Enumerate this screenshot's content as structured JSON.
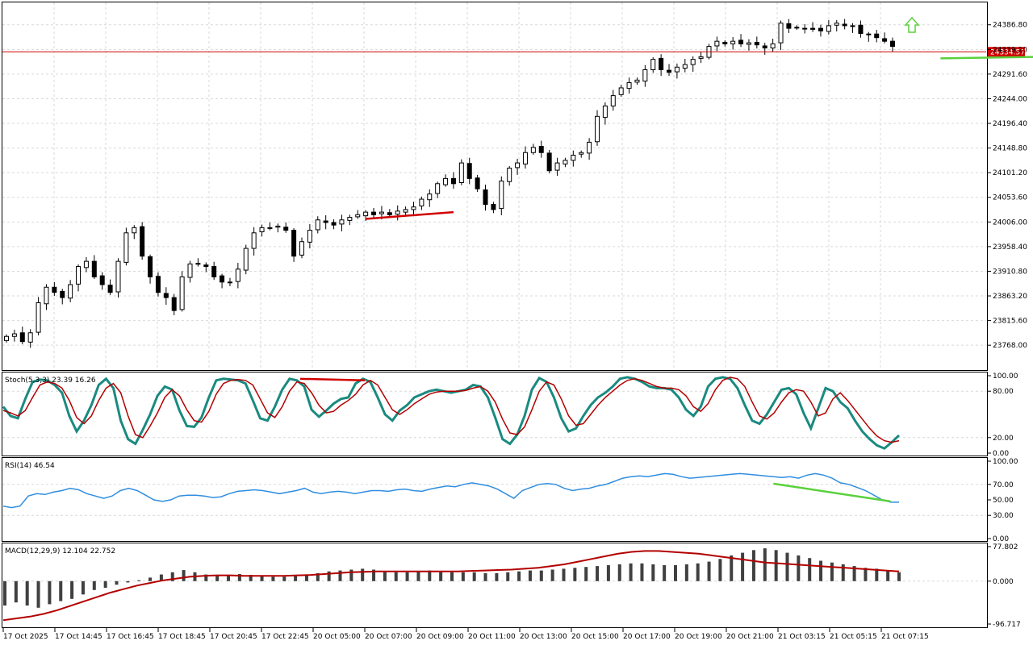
{
  "chart_data": {
    "type": "candlestick",
    "price_panel": {
      "ylim": [
        23720,
        24430
      ],
      "tick_labels": [
        "24386.80",
        "24339.20",
        "24291.60",
        "24244.00",
        "24196.40",
        "24148.80",
        "24101.20",
        "24053.60",
        "24006.00",
        "23958.40",
        "23910.80",
        "23863.20",
        "23815.60",
        "23768.00"
      ],
      "current_price": 24334.57,
      "current_price_label": "24334.57",
      "current_price_color": "#d10000",
      "up_candle_color": "#ffffff",
      "down_candle_color": "#000000",
      "close_path": [
        23785,
        23790,
        23775,
        23792,
        23850,
        23880,
        23870,
        23860,
        23885,
        23920,
        23930,
        23900,
        23885,
        23870,
        23930,
        23985,
        23995,
        23940,
        23900,
        23870,
        23860,
        23835,
        23900,
        23925,
        23925,
        23920,
        23900,
        23890,
        23890,
        23915,
        23955,
        23985,
        23995,
        23995,
        23998,
        23990,
        23940,
        23968,
        23990,
        24010,
        24005,
        24000,
        24010,
        24015,
        24020,
        24025,
        24020,
        24025,
        24020,
        24027,
        24030,
        24035,
        24050,
        24060,
        24080,
        24090,
        24080,
        24120,
        24090,
        24070,
        24040,
        24030,
        24085,
        24110,
        24120,
        24140,
        24150,
        24140,
        24105,
        24120,
        24125,
        24135,
        24140,
        24160,
        24210,
        24230,
        24250,
        24265,
        24275,
        24280,
        24300,
        24320,
        24300,
        24295,
        24305,
        24310,
        24320,
        24325,
        24345,
        24355,
        24350,
        24355,
        24350,
        24352,
        24348,
        24342,
        24350,
        24390,
        24380,
        24382,
        24380,
        24378,
        24375,
        24385,
        24390,
        24385,
        24384,
        24370,
        24368,
        24362,
        24355,
        24345
      ],
      "trendlines": [
        {
          "name": "resistance-line",
          "color": "#d10000",
          "from_index": 45,
          "from_price": 24012,
          "to_index": 56,
          "to_price": 24025
        },
        {
          "name": "support-line",
          "color": "#5ad13c",
          "from_index": 117,
          "from_price": 24322,
          "to_index": 138,
          "to_price": 24327
        }
      ],
      "arrow": {
        "direction": "up",
        "color": "#5ad13c"
      }
    },
    "stoch_panel": {
      "label": "Stoch(5,3,3) 23.39 16.26",
      "ylim": [
        0,
        100
      ],
      "tick_labels": [
        "100.00",
        "80.00",
        "20.00",
        "0.00"
      ],
      "levels": [
        20,
        80
      ],
      "main_color": "#1a8a80",
      "signal_color": "#b30000",
      "main": [
        60,
        48,
        45,
        70,
        92,
        95,
        94,
        88,
        78,
        48,
        28,
        42,
        62,
        88,
        96,
        84,
        42,
        18,
        12,
        30,
        50,
        74,
        86,
        82,
        55,
        35,
        34,
        46,
        72,
        94,
        96,
        95,
        94,
        90,
        68,
        45,
        42,
        60,
        82,
        96,
        94,
        86,
        56,
        47,
        55,
        64,
        70,
        72,
        90,
        96,
        92,
        72,
        50,
        42,
        55,
        62,
        72,
        76,
        80,
        82,
        80,
        78,
        80,
        82,
        88,
        86,
        72,
        46,
        18,
        12,
        24,
        48,
        82,
        97,
        92,
        72,
        45,
        28,
        32,
        48,
        62,
        72,
        78,
        86,
        96,
        98,
        96,
        92,
        86,
        84,
        84,
        82,
        72,
        56,
        48,
        60,
        86,
        96,
        98,
        96,
        84,
        62,
        42,
        38,
        50,
        66,
        82,
        84,
        76,
        52,
        32,
        58,
        84,
        80,
        66,
        58,
        42,
        28,
        18,
        10,
        6,
        14,
        23
      ],
      "signal": [
        55,
        52,
        48,
        55,
        72,
        88,
        92,
        90,
        84,
        68,
        46,
        38,
        48,
        68,
        84,
        90,
        78,
        48,
        24,
        20,
        35,
        52,
        72,
        82,
        74,
        56,
        42,
        40,
        54,
        76,
        90,
        94,
        95,
        94,
        88,
        70,
        52,
        46,
        60,
        80,
        92,
        90,
        78,
        62,
        52,
        54,
        62,
        68,
        76,
        88,
        94,
        88,
        72,
        56,
        50,
        56,
        64,
        70,
        76,
        79,
        80,
        80,
        80,
        81,
        84,
        86,
        80,
        66,
        44,
        26,
        24,
        34,
        56,
        80,
        92,
        88,
        70,
        48,
        36,
        38,
        50,
        62,
        72,
        80,
        88,
        94,
        96,
        94,
        90,
        86,
        84,
        84,
        82,
        74,
        60,
        54,
        64,
        82,
        94,
        98,
        96,
        86,
        66,
        48,
        44,
        52,
        66,
        78,
        82,
        80,
        66,
        48,
        52,
        70,
        78,
        68,
        56,
        44,
        32,
        22,
        16,
        14,
        16
      ]
    },
    "rsi_panel": {
      "label": "RSI(14) 46.54",
      "ylim": [
        0,
        100
      ],
      "tick_labels": [
        "100.00",
        "70.00",
        "50.00",
        "30.00",
        "0.00"
      ],
      "line_color": "#2f8ee0",
      "values": [
        42,
        40,
        42,
        55,
        58,
        57,
        60,
        62,
        65,
        63,
        58,
        55,
        52,
        55,
        62,
        65,
        62,
        56,
        50,
        48,
        50,
        55,
        56,
        56,
        55,
        53,
        54,
        58,
        61,
        62,
        63,
        62,
        60,
        58,
        60,
        62,
        65,
        60,
        58,
        60,
        61,
        60,
        58,
        60,
        62,
        62,
        61,
        63,
        64,
        62,
        61,
        64,
        66,
        68,
        67,
        70,
        72,
        70,
        68,
        64,
        58,
        52,
        62,
        66,
        70,
        71,
        70,
        65,
        62,
        64,
        65,
        68,
        70,
        74,
        78,
        80,
        81,
        80,
        82,
        84,
        83,
        80,
        78,
        79,
        80,
        81,
        82,
        83,
        84,
        83,
        82,
        81,
        80,
        79,
        80,
        78,
        82,
        84,
        82,
        78,
        72,
        70,
        66,
        62,
        56,
        50,
        47,
        47
      ],
      "divergence_line": {
        "color": "#5ad13c",
        "from_index": 92,
        "from_value": 71,
        "to_index": 106,
        "to_value": 48
      }
    },
    "macd_panel": {
      "label": "MACD(12,29,9) 12.104 22.752",
      "ylim": [
        -96.717,
        77.802
      ],
      "tick_labels": [
        "77.802",
        "0.000",
        "-96.717"
      ],
      "histogram_color": "#404040",
      "signal_color": "#b30000",
      "histogram": [
        -55,
        -48,
        -55,
        -60,
        -52,
        -45,
        -40,
        -30,
        -20,
        -15,
        -8,
        -3,
        2,
        8,
        15,
        20,
        25,
        20,
        15,
        12,
        14,
        16,
        14,
        12,
        10,
        10,
        12,
        14,
        18,
        22,
        24,
        26,
        28,
        26,
        22,
        20,
        20,
        22,
        24,
        22,
        20,
        20,
        20,
        18,
        18,
        20,
        22,
        24,
        24,
        26,
        28,
        30,
        32,
        34,
        36,
        38,
        40,
        40,
        38,
        36,
        36,
        38,
        40,
        44,
        50,
        58,
        64,
        70,
        74,
        70,
        64,
        58,
        52,
        46,
        42,
        38,
        34,
        30,
        28,
        24,
        20
      ],
      "signal": [
        -88,
        -84,
        -80,
        -74,
        -66,
        -56,
        -46,
        -36,
        -26,
        -18,
        -10,
        -4,
        2,
        6,
        10,
        12,
        13,
        13,
        12,
        12,
        12,
        12,
        13,
        14,
        16,
        18,
        20,
        21,
        22,
        22,
        22,
        22,
        22,
        22,
        22,
        23,
        24,
        25,
        26,
        28,
        30,
        34,
        38,
        44,
        50,
        56,
        62,
        66,
        68,
        68,
        66,
        64,
        62,
        58,
        54,
        50,
        46,
        42,
        40,
        38,
        36,
        34,
        32,
        30,
        28,
        26,
        24,
        22
      ]
    },
    "x_labels": [
      "17 Oct 2025",
      "17 Oct 14:45",
      "17 Oct 16:45",
      "17 Oct 18:45",
      "17 Oct 20:45",
      "17 Oct 22:45",
      "20 Oct 05:00",
      "20 Oct 07:00",
      "20 Oct 09:00",
      "20 Oct 11:00",
      "20 Oct 13:00",
      "20 Oct 15:00",
      "20 Oct 17:00",
      "20 Oct 19:00",
      "20 Oct 21:00",
      "21 Oct 03:15",
      "21 Oct 05:15",
      "21 Oct 07:15"
    ]
  }
}
